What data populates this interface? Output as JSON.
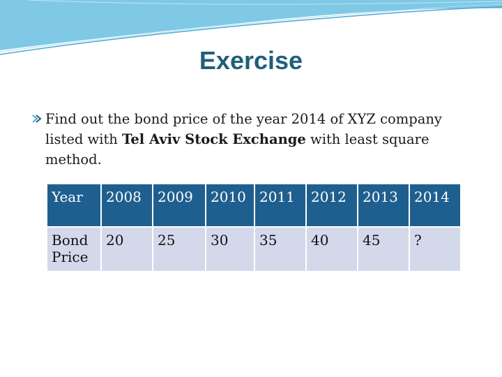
{
  "slide": {
    "title": "Exercise",
    "bullet": {
      "icon": "bullet-arrow-icon",
      "text_before": "Find out the bond price of the year 2014 of XYZ company listed with ",
      "text_bold": "Tel Aviv Stock Exchange",
      "text_after": " with least square method."
    },
    "table": {
      "header": [
        "Year",
        "2008",
        "2009",
        "2010",
        "2011",
        "2012",
        "2013",
        "2014"
      ],
      "row": [
        "Bond Price",
        "20",
        "25",
        "30",
        "35",
        "40",
        "45",
        "?"
      ]
    }
  },
  "colors": {
    "title": "#1f5f7a",
    "header_bg": "#1f5f8f",
    "row_bg": "#d3d9ea",
    "banner": "#7fc9e6"
  }
}
